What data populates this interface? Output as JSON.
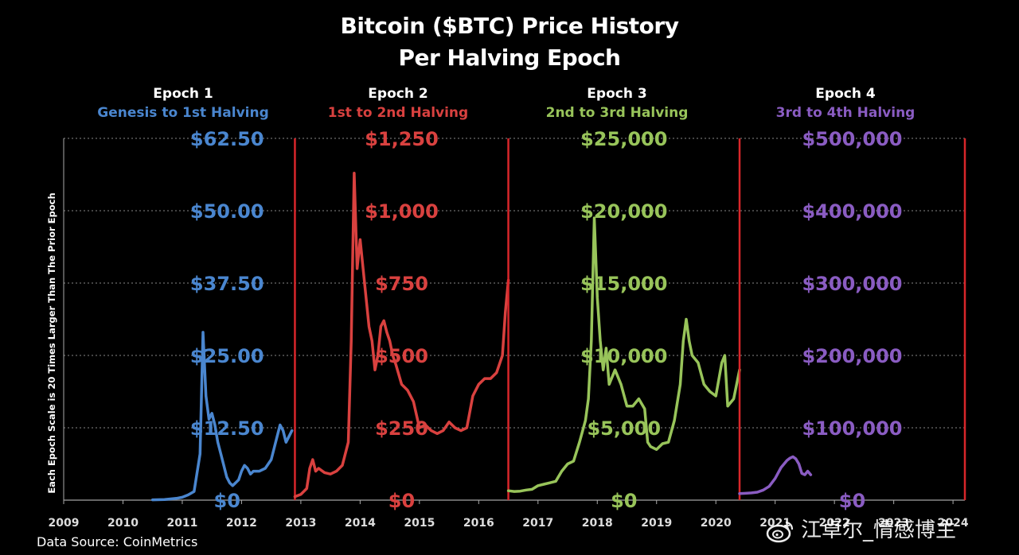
{
  "title": {
    "line1": "Bitcoin ($BTC) Price History",
    "line2": "Per Halving Epoch"
  },
  "y_axis_label": "Each Epoch Scale is 20 Times Larger Than The Prior Epoch",
  "source": "Data Source: CoinMetrics",
  "watermark": "江卓尔_情感博主",
  "colors": {
    "epoch1": "#4a86cf",
    "epoch2": "#d9413f",
    "epoch3": "#98c45a",
    "epoch4": "#8a5cc2",
    "divider": "#d8262a",
    "grid": "#888888"
  },
  "chart_data": {
    "type": "line",
    "x_ticks": [
      "2009",
      "2010",
      "2011",
      "2012",
      "2013",
      "2014",
      "2015",
      "2016",
      "2017",
      "2018",
      "2019",
      "2020",
      "2021",
      "2022",
      "2023",
      "2024"
    ],
    "x_range": [
      2009,
      2024.2
    ],
    "grid": true,
    "epochs": [
      {
        "name": "Epoch 1",
        "subtitle": "Genesis to 1st Halving",
        "color": "#4a86cf",
        "x_range": [
          2009,
          2012.9
        ],
        "y_ticks": [
          "$0",
          "$12.50",
          "$25.00",
          "$37.50",
          "$50.00",
          "$62.50"
        ],
        "y_max": 62.5,
        "series": {
          "x": [
            2010.5,
            2010.7,
            2010.9,
            2011.0,
            2011.1,
            2011.2,
            2011.3,
            2011.35,
            2011.4,
            2011.45,
            2011.5,
            2011.55,
            2011.6,
            2011.65,
            2011.7,
            2011.75,
            2011.8,
            2011.85,
            2011.9,
            2011.95,
            2012.0,
            2012.05,
            2012.1,
            2012.15,
            2012.2,
            2012.3,
            2012.4,
            2012.5,
            2012.55,
            2012.6,
            2012.65,
            2012.7,
            2012.75,
            2012.8,
            2012.85
          ],
          "y": [
            0.06,
            0.1,
            0.3,
            0.5,
            0.9,
            1.5,
            8,
            29,
            18,
            14,
            15,
            13,
            10,
            8,
            6,
            4,
            3,
            2.5,
            3,
            3.5,
            5,
            6,
            5.5,
            4.5,
            5,
            5,
            5.5,
            7,
            9,
            11,
            13,
            12,
            10,
            11,
            12
          ]
        }
      },
      {
        "name": "Epoch 2",
        "subtitle": "1st to 2nd Halving",
        "color": "#d9413f",
        "x_range": [
          2012.9,
          2016.5
        ],
        "y_ticks": [
          "$0",
          "$250",
          "$500",
          "$750",
          "$1,000",
          "$1,250"
        ],
        "y_max": 1250,
        "series": {
          "x": [
            2012.9,
            2013.0,
            2013.1,
            2013.15,
            2013.2,
            2013.25,
            2013.3,
            2013.4,
            2013.5,
            2013.6,
            2013.7,
            2013.8,
            2013.85,
            2013.9,
            2013.95,
            2014.0,
            2014.05,
            2014.1,
            2014.15,
            2014.2,
            2014.25,
            2014.3,
            2014.35,
            2014.4,
            2014.45,
            2014.5,
            2014.55,
            2014.6,
            2014.7,
            2014.8,
            2014.9,
            2015.0,
            2015.1,
            2015.2,
            2015.3,
            2015.4,
            2015.5,
            2015.6,
            2015.7,
            2015.8,
            2015.9,
            2016.0,
            2016.1,
            2016.2,
            2016.3,
            2016.4,
            2016.45,
            2016.5
          ],
          "y": [
            12,
            20,
            40,
            110,
            140,
            100,
            110,
            95,
            90,
            100,
            120,
            200,
            550,
            1130,
            800,
            900,
            800,
            700,
            600,
            550,
            450,
            500,
            600,
            620,
            580,
            550,
            500,
            470,
            400,
            380,
            340,
            250,
            260,
            240,
            230,
            240,
            270,
            250,
            240,
            250,
            360,
            400,
            420,
            420,
            440,
            500,
            650,
            760
          ]
        }
      },
      {
        "name": "Epoch 3",
        "subtitle": "2nd to 3rd Halving",
        "color": "#98c45a",
        "x_range": [
          2016.5,
          2020.4
        ],
        "y_ticks": [
          "$0",
          "$5,000",
          "$10,000",
          "$15,000",
          "$20,000",
          "$25,000"
        ],
        "y_max": 25000,
        "series": {
          "x": [
            2016.5,
            2016.6,
            2016.7,
            2016.8,
            2016.9,
            2017.0,
            2017.1,
            2017.2,
            2017.3,
            2017.4,
            2017.5,
            2017.6,
            2017.7,
            2017.8,
            2017.85,
            2017.9,
            2017.95,
            2018.0,
            2018.05,
            2018.1,
            2018.15,
            2018.2,
            2018.3,
            2018.4,
            2018.5,
            2018.6,
            2018.7,
            2018.8,
            2018.85,
            2018.9,
            2019.0,
            2019.1,
            2019.2,
            2019.3,
            2019.4,
            2019.45,
            2019.5,
            2019.55,
            2019.6,
            2019.7,
            2019.8,
            2019.9,
            2020.0,
            2020.1,
            2020.15,
            2020.2,
            2020.3,
            2020.4
          ],
          "y": [
            650,
            600,
            620,
            700,
            750,
            1000,
            1100,
            1200,
            1300,
            2000,
            2500,
            2700,
            4000,
            5500,
            7000,
            11000,
            19500,
            14000,
            11000,
            9000,
            10500,
            8000,
            9000,
            8000,
            6500,
            6500,
            7000,
            6300,
            4000,
            3700,
            3500,
            3900,
            4000,
            5500,
            8000,
            11000,
            12500,
            11000,
            10000,
            9500,
            8000,
            7500,
            7200,
            9500,
            10000,
            6500,
            7000,
            9000
          ]
        }
      },
      {
        "name": "Epoch 4",
        "subtitle": "3rd to 4th Halving",
        "color": "#8a5cc2",
        "x_range": [
          2020.4,
          2024.2
        ],
        "y_ticks": [
          "$0",
          "$100,000",
          "$200,000",
          "$300,000",
          "$400,000",
          "$500,000"
        ],
        "y_max": 500000,
        "series": {
          "x": [
            2020.4,
            2020.5,
            2020.6,
            2020.7,
            2020.8,
            2020.9,
            2021.0,
            2021.1,
            2021.2,
            2021.25,
            2021.3,
            2021.35,
            2021.4,
            2021.45,
            2021.5,
            2021.55,
            2021.6
          ],
          "y": [
            9000,
            9500,
            10000,
            11000,
            14000,
            19000,
            30000,
            45000,
            55000,
            58000,
            60000,
            57000,
            50000,
            37000,
            35000,
            40000,
            35000
          ]
        }
      }
    ]
  }
}
